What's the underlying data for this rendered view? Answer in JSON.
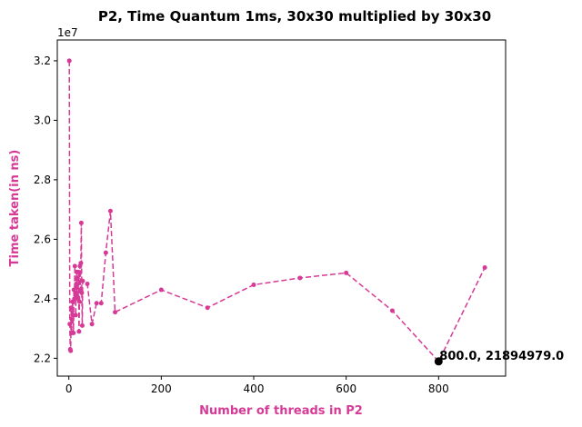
{
  "chart_data": {
    "type": "line",
    "title": "P2, Time Quantum 1ms, 30x30 multiplied by 30x30",
    "xlabel": "Number of threads in P2",
    "ylabel": "Time taken(in ns)",
    "y_offset_text": "1e7",
    "label_color": "#d63a96",
    "line_color": "#d63a96",
    "line_style": "dashed",
    "marker": "dot",
    "xlim": [
      -25,
      945
    ],
    "ylim": [
      21400000,
      32700000
    ],
    "x_ticks": [
      0,
      200,
      400,
      600,
      800
    ],
    "x_tick_labels": [
      "0",
      "200",
      "400",
      "600",
      "800"
    ],
    "y_ticks": [
      22000000,
      24000000,
      26000000,
      28000000,
      30000000,
      32000000
    ],
    "y_tick_labels": [
      "2.2",
      "2.4",
      "2.6",
      "2.8",
      "3.0",
      "3.2"
    ],
    "series": [
      {
        "x": [
          1,
          2,
          3,
          4,
          5,
          6,
          7,
          8,
          9,
          10,
          11,
          12,
          13,
          14,
          15,
          16,
          17,
          18,
          19,
          20,
          21,
          22,
          23,
          24,
          25,
          26,
          27,
          28,
          29,
          30,
          40,
          50,
          60,
          70,
          80,
          90,
          100,
          200,
          300,
          400,
          500,
          600,
          700,
          800,
          900
        ],
        "y": [
          32000000,
          23150000,
          22300000,
          22250000,
          23700000,
          22850000,
          23300000,
          23900000,
          23450000,
          22850000,
          24300000,
          24000000,
          25100000,
          24200000,
          23450000,
          24500000,
          24900000,
          24100000,
          24700000,
          24000000,
          24900000,
          22900000,
          23900000,
          25100000,
          24300000,
          25200000,
          26550000,
          24200000,
          23100000,
          24600000,
          24500000,
          23150000,
          23850000,
          23850000,
          25550000,
          26950000,
          23550000,
          24300000,
          23700000,
          24470000,
          24700000,
          24870000,
          23600000,
          21894979,
          25050000
        ]
      }
    ],
    "highlight_point": {
      "x": 800,
      "y": 21894979,
      "label": "800.0, 21894979.0"
    },
    "grid": false,
    "legend": "none"
  }
}
